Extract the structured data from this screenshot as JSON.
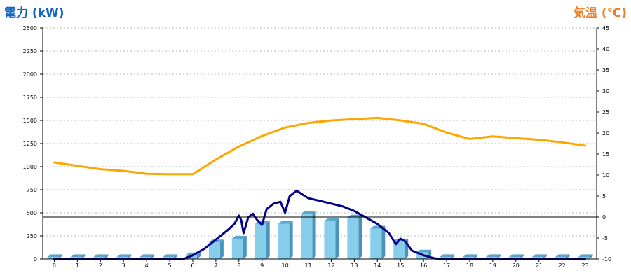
{
  "chart_data": {
    "type": "bar+line",
    "title": "",
    "left_axis_label": "電力 (kW)",
    "right_axis_label": "気温 (℃)",
    "x_categories": [
      "0",
      "1",
      "2",
      "3",
      "4",
      "5",
      "6",
      "7",
      "8",
      "9",
      "10",
      "11",
      "12",
      "13",
      "14",
      "15",
      "16",
      "17",
      "18",
      "19",
      "20",
      "21",
      "22",
      "23"
    ],
    "left_axis": {
      "min": 0,
      "max": 2500,
      "ticks": [
        0,
        250,
        500,
        750,
        1000,
        1250,
        1500,
        1750,
        2000,
        2250,
        2500
      ]
    },
    "right_axis": {
      "min": -10,
      "max": 45,
      "ticks": [
        -10,
        -5,
        0,
        5,
        10,
        15,
        20,
        25,
        30,
        35,
        40,
        45
      ]
    },
    "grid": "dashed horizontal",
    "reference_line": {
      "axis": "right",
      "value": 0
    },
    "series": [
      {
        "kind": "bar",
        "axis": "left",
        "color": "#87ceeb",
        "values": [
          20,
          20,
          20,
          20,
          20,
          20,
          40,
          180,
          220,
          380,
          380,
          490,
          410,
          450,
          330,
          190,
          70,
          20,
          20,
          20,
          20,
          20,
          20,
          20
        ]
      },
      {
        "kind": "line",
        "axis": "left",
        "color": "#00008b",
        "points": [
          [
            0,
            0
          ],
          [
            1,
            0
          ],
          [
            2,
            0
          ],
          [
            3,
            0
          ],
          [
            4,
            0
          ],
          [
            5,
            0
          ],
          [
            5.6,
            0
          ],
          [
            6,
            40
          ],
          [
            6.5,
            110
          ],
          [
            7,
            210
          ],
          [
            7.5,
            310
          ],
          [
            7.8,
            380
          ],
          [
            8,
            470
          ],
          [
            8.1,
            420
          ],
          [
            8.2,
            280
          ],
          [
            8.4,
            450
          ],
          [
            8.6,
            490
          ],
          [
            8.8,
            420
          ],
          [
            9,
            370
          ],
          [
            9.2,
            540
          ],
          [
            9.5,
            600
          ],
          [
            9.8,
            620
          ],
          [
            10,
            500
          ],
          [
            10.2,
            680
          ],
          [
            10.5,
            740
          ],
          [
            10.8,
            690
          ],
          [
            11,
            660
          ],
          [
            11.5,
            630
          ],
          [
            12,
            600
          ],
          [
            12.5,
            570
          ],
          [
            13,
            520
          ],
          [
            13.5,
            450
          ],
          [
            14,
            380
          ],
          [
            14.5,
            280
          ],
          [
            14.8,
            160
          ],
          [
            15,
            220
          ],
          [
            15.2,
            190
          ],
          [
            15.5,
            90
          ],
          [
            16,
            40
          ],
          [
            16.5,
            5
          ],
          [
            17,
            0
          ],
          [
            18,
            0
          ],
          [
            19,
            0
          ],
          [
            20,
            0
          ],
          [
            21,
            0
          ],
          [
            22,
            0
          ],
          [
            23,
            0
          ]
        ]
      },
      {
        "kind": "line",
        "axis": "right",
        "color": "#ffa500",
        "points": [
          [
            0,
            13
          ],
          [
            1,
            12.2
          ],
          [
            2,
            11.4
          ],
          [
            3,
            11
          ],
          [
            4,
            10.3
          ],
          [
            5,
            10.2
          ],
          [
            6,
            10.2
          ],
          [
            7,
            13.7
          ],
          [
            8,
            16.8
          ],
          [
            9,
            19.3
          ],
          [
            10,
            21.3
          ],
          [
            11,
            22.4
          ],
          [
            12,
            23
          ],
          [
            13,
            23.3
          ],
          [
            14,
            23.6
          ],
          [
            15,
            23
          ],
          [
            16,
            22.2
          ],
          [
            17,
            20.1
          ],
          [
            18,
            18.6
          ],
          [
            19,
            19.2
          ],
          [
            20,
            18.8
          ],
          [
            21,
            18.4
          ],
          [
            22,
            17.8
          ],
          [
            23,
            17
          ]
        ]
      }
    ]
  }
}
